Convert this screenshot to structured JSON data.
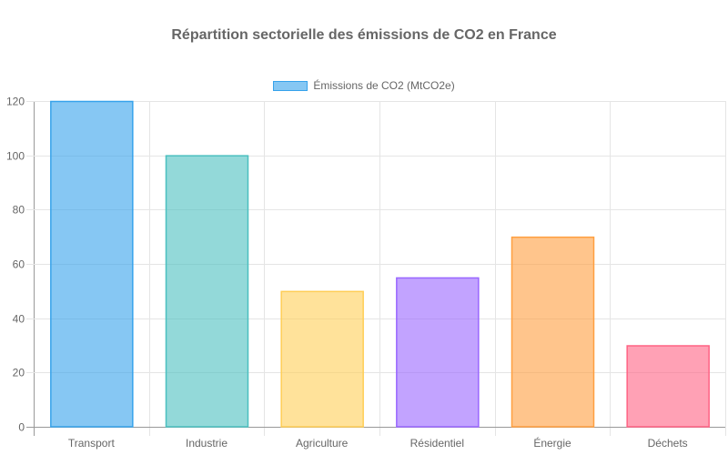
{
  "chart_data": {
    "type": "bar",
    "title": "Répartition sectorielle des émissions de CO2 en France",
    "xlabel": "",
    "ylabel": "",
    "categories": [
      "Transport",
      "Industrie",
      "Agriculture",
      "Résidentiel",
      "Énergie",
      "Déchets"
    ],
    "series": [
      {
        "name": "Émissions de CO2 (MtCO2e)",
        "values": [
          120,
          100,
          50,
          55,
          70,
          30
        ]
      }
    ],
    "ylim": [
      0,
      120
    ],
    "yticks": [
      0,
      20,
      40,
      60,
      80,
      100,
      120
    ],
    "grid": true,
    "legend_position": "top",
    "colors": [
      {
        "fill": "rgba(54,162,235,0.6)",
        "stroke": "#36a2eb"
      },
      {
        "fill": "rgba(75,192,192,0.6)",
        "stroke": "#4bc0c0"
      },
      {
        "fill": "rgba(255,206,86,0.6)",
        "stroke": "#ffce56"
      },
      {
        "fill": "rgba(153,102,255,0.6)",
        "stroke": "#9966ff"
      },
      {
        "fill": "rgba(255,159,64,0.6)",
        "stroke": "#ff9f40"
      },
      {
        "fill": "rgba(255,99,132,0.6)",
        "stroke": "#ff6384"
      }
    ]
  }
}
